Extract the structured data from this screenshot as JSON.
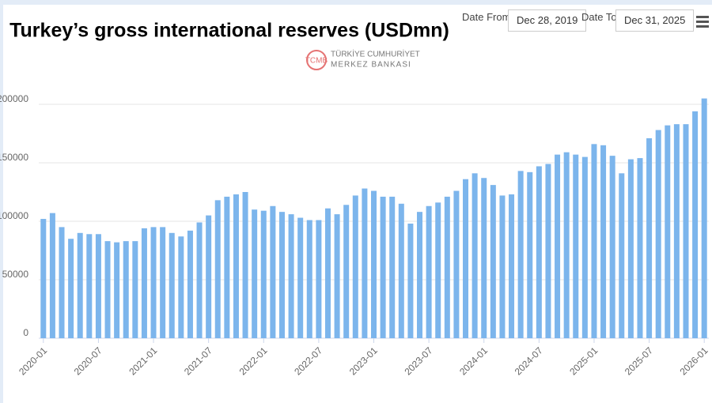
{
  "controls": {
    "date_from_label": "Date From",
    "date_from": "Dec 28, 2019",
    "date_to_label": "Date To",
    "date_to": "Dec 31, 2025"
  },
  "logo": {
    "line1": "TÜRKİYE CUMHURİYET",
    "line2": "MERKEZ BANKASI"
  },
  "chart_data": {
    "type": "bar",
    "title": "Turkey’s gross international reserves (USDmn)",
    "categories": [
      "2020-01",
      null,
      null,
      null,
      null,
      null,
      "2020-07",
      null,
      null,
      null,
      null,
      null,
      "2021-01",
      null,
      null,
      null,
      null,
      null,
      "2021-07",
      null,
      null,
      null,
      null,
      null,
      "2022-01",
      null,
      null,
      null,
      null,
      null,
      "2022-07",
      null,
      null,
      null,
      null,
      null,
      "2023-01",
      null,
      null,
      null,
      null,
      null,
      "2023-07",
      null,
      null,
      null,
      null,
      null,
      "2024-01",
      null,
      null,
      null,
      null,
      null,
      "2024-07",
      null,
      null,
      null,
      null,
      null,
      "2025-01",
      null,
      null,
      null,
      null,
      null,
      "2025-07",
      null,
      null,
      null,
      null,
      null,
      "2026-01"
    ],
    "values": [
      102000,
      107000,
      95000,
      85000,
      90000,
      89000,
      89000,
      83000,
      82000,
      83000,
      83000,
      94000,
      95000,
      95000,
      90000,
      87000,
      92000,
      99000,
      105000,
      118000,
      121000,
      123000,
      125000,
      110000,
      109000,
      113000,
      108000,
      106000,
      103000,
      101000,
      101000,
      111000,
      106000,
      114000,
      122000,
      128000,
      126000,
      121000,
      121000,
      115000,
      98000,
      108000,
      113000,
      116000,
      121000,
      126000,
      136000,
      141000,
      137000,
      131000,
      122000,
      123000,
      143000,
      142000,
      147000,
      149000,
      157000,
      159000,
      157000,
      155000,
      166000,
      165000,
      156000,
      141000,
      153000,
      154000,
      171000,
      178000,
      182000,
      183000,
      183000,
      194000,
      205000
    ],
    "color": "#7cb5ec",
    "ylim": [
      0,
      250000
    ],
    "yticks": [
      0,
      50000,
      100000,
      150000,
      200000
    ],
    "grid": true
  }
}
